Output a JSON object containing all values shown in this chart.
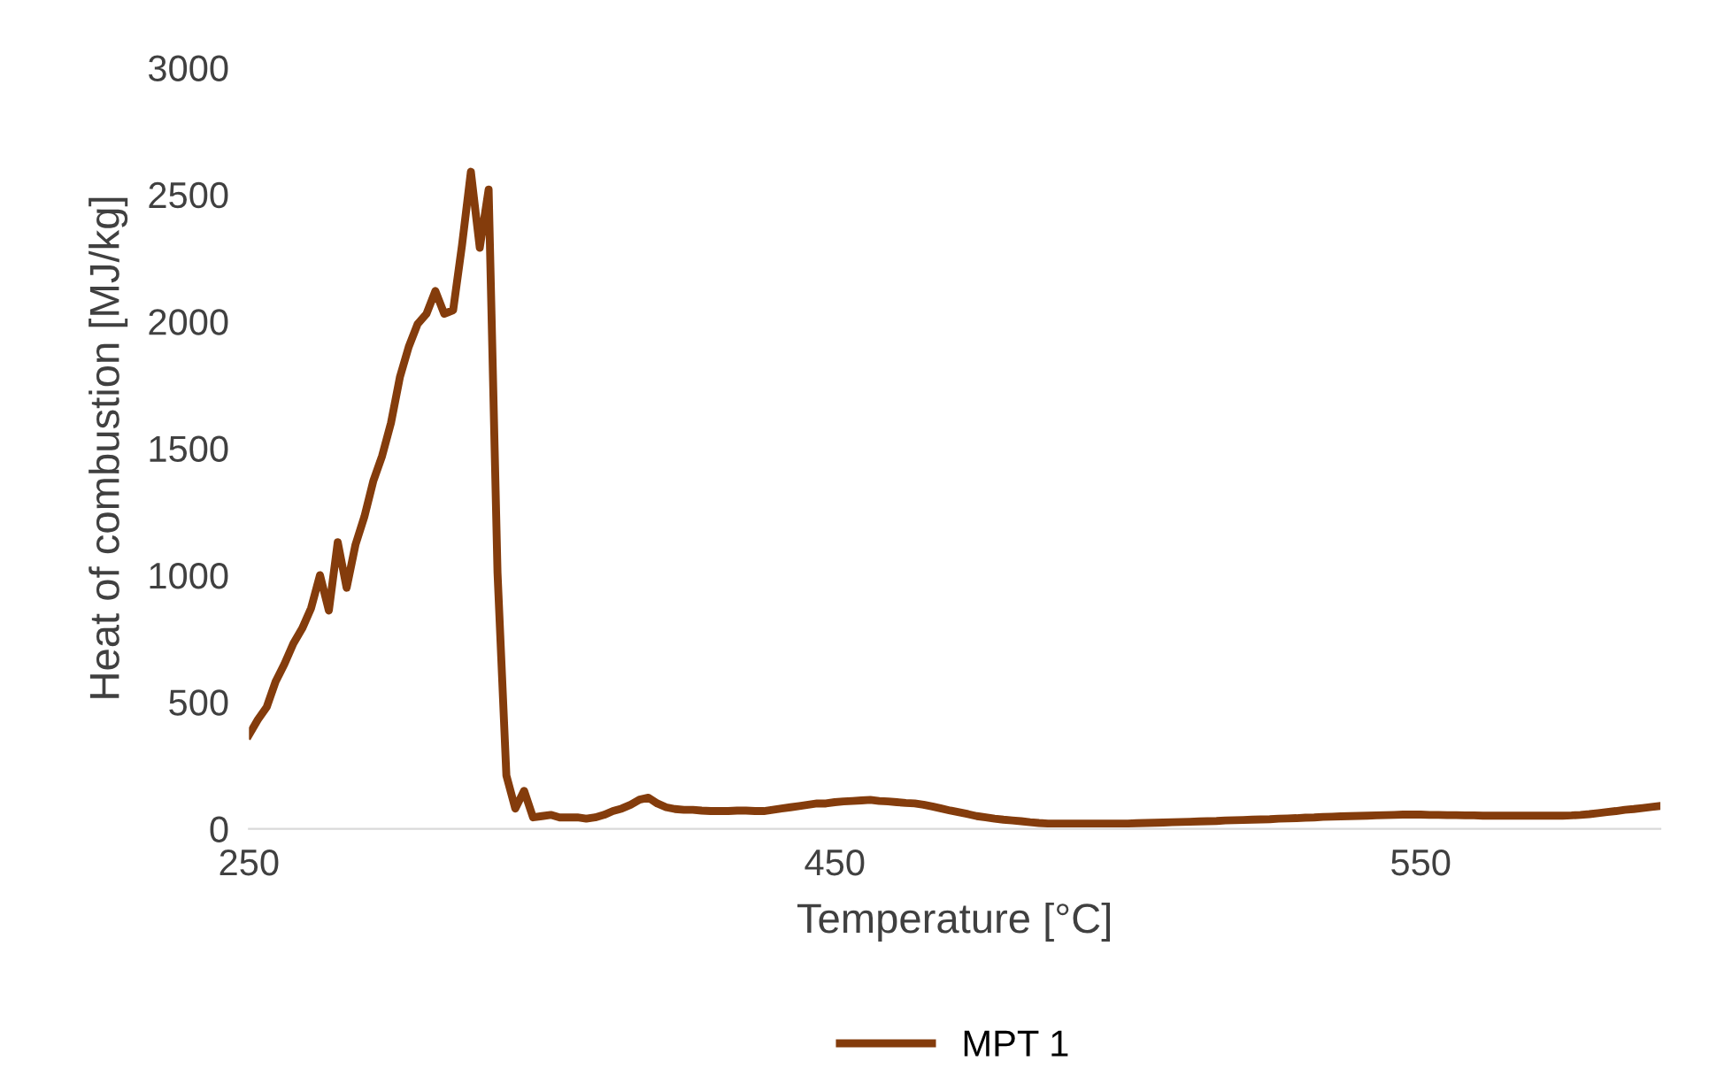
{
  "chart_data": {
    "type": "line",
    "xlabel": "Temperature [°C]",
    "ylabel": "Heat of combustion [MJ/kg]",
    "categories": [
      "250",
      null,
      null,
      null,
      null,
      null,
      null,
      null,
      null,
      null,
      null,
      null,
      null,
      null,
      null,
      null,
      null,
      null,
      null,
      null,
      null,
      null,
      null,
      null,
      null,
      null,
      null,
      null,
      null,
      null,
      null,
      null,
      null,
      null,
      null,
      null,
      null,
      null,
      null,
      null,
      null,
      null,
      null,
      null,
      null,
      null,
      null,
      null,
      null,
      null,
      null,
      null,
      null,
      null,
      null,
      null,
      null,
      null,
      null,
      null,
      null,
      null,
      null,
      null,
      null,
      null,
      "450",
      null,
      null,
      null,
      null,
      null,
      null,
      null,
      null,
      null,
      null,
      null,
      null,
      null,
      null,
      null,
      null,
      null,
      null,
      null,
      null,
      null,
      null,
      null,
      null,
      null,
      null,
      null,
      null,
      null,
      null,
      null,
      null,
      null,
      null,
      null,
      null,
      null,
      null,
      null,
      null,
      null,
      null,
      null,
      null,
      null,
      null,
      null,
      null,
      null,
      null,
      null,
      null,
      null,
      null,
      null,
      null,
      null,
      null,
      null,
      null,
      null,
      null,
      null,
      null,
      null,
      "550",
      null,
      null,
      null,
      null,
      null,
      null,
      null,
      null,
      null,
      null,
      null,
      null,
      null,
      null,
      null,
      null,
      null,
      null,
      null,
      null,
      null,
      null,
      null,
      null,
      null,
      null,
      null
    ],
    "series": [
      {
        "name": "MPT 1",
        "color": "#843c0c",
        "values": [
          370,
          430,
          480,
          580,
          650,
          730,
          790,
          870,
          1000,
          860,
          1130,
          950,
          1120,
          1230,
          1370,
          1470,
          1600,
          1780,
          1900,
          1990,
          2030,
          2120,
          2030,
          2044,
          2300,
          2590,
          2290,
          2520,
          1010,
          210,
          80,
          150,
          45,
          50,
          55,
          45,
          45,
          45,
          40,
          45,
          55,
          70,
          80,
          95,
          115,
          123,
          100,
          85,
          78,
          75,
          75,
          72,
          70,
          70,
          70,
          72,
          72,
          70,
          70,
          75,
          80,
          85,
          90,
          95,
          100,
          100,
          105,
          108,
          110,
          112,
          114,
          110,
          108,
          105,
          102,
          100,
          95,
          88,
          80,
          72,
          65,
          58,
          50,
          45,
          40,
          36,
          33,
          30,
          26,
          23,
          21,
          21,
          21,
          21,
          21,
          21,
          21,
          21,
          21,
          21,
          22,
          23,
          24,
          25,
          26,
          27,
          28,
          29,
          30,
          31,
          33,
          34,
          35,
          36,
          37,
          38,
          40,
          41,
          42,
          44,
          45,
          47,
          48,
          49,
          50,
          51,
          52,
          53,
          54,
          55,
          56,
          56,
          56,
          55,
          55,
          54,
          54,
          53,
          53,
          52,
          52,
          52,
          52,
          52,
          52,
          52,
          52,
          52,
          52,
          53,
          55,
          58,
          62,
          66,
          70,
          75,
          78,
          82,
          86,
          90
        ]
      }
    ],
    "ylim": [
      0,
      3000
    ],
    "yticks": [
      0,
      500,
      1000,
      1500,
      2000,
      2500,
      3000
    ],
    "grid": false,
    "legend": "bottom",
    "marker": "none",
    "line_style": "solid"
  }
}
